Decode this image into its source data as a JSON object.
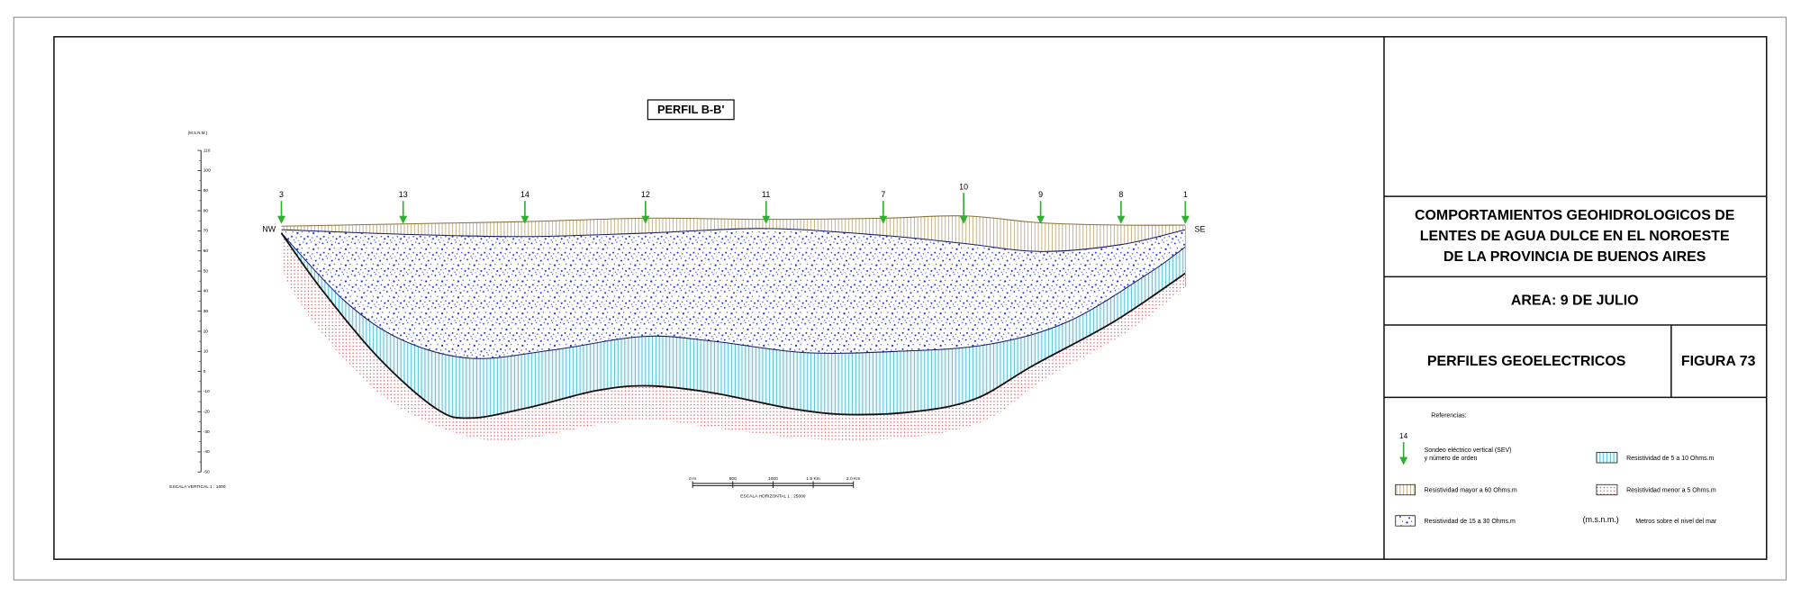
{
  "figure": {
    "title": "PERFIL B-B'",
    "left_label": "NW",
    "right_label": "SE",
    "sev_numbers": [
      3,
      13,
      14,
      12,
      11,
      7,
      10,
      9,
      8,
      1
    ]
  },
  "vertical_scale": {
    "unit": "(M.S.N.M.)",
    "ticks": [
      110,
      100,
      90,
      80,
      70,
      60,
      50,
      40,
      30,
      20,
      10,
      0,
      -10,
      -20,
      -30,
      -40,
      -50
    ],
    "caption": "ESCALA VERTICAL 1 : 1000"
  },
  "horizontal_scale": {
    "labels": [
      "0 m",
      "500",
      "1000",
      "1.5 Km",
      "2.0 Km"
    ],
    "caption": "ESCALA HORIZONTAL 1 : 25000"
  },
  "title_block": {
    "title_lines": [
      "COMPORTAMIENTOS GEOHIDROLOGICOS DE",
      "LENTES DE AGUA DULCE EN EL NOROESTE",
      "DE LA PROVINCIA DE BUENOS AIRES"
    ],
    "area": "AREA: 9 DE JULIO",
    "subject": "PERFILES GEOELECTRICOS",
    "figure": "FIGURA 73"
  },
  "references": {
    "heading": "Referencias:",
    "sev": {
      "symbol": 14,
      "lines": [
        "Sondeo eléctrico vertical (SEV)",
        "y número de orden"
      ]
    },
    "items": [
      {
        "label": "Resistividad mayor a 60 Ohms.m"
      },
      {
        "label": "Resistividad de 15 a 30 Ohms.m"
      },
      {
        "label": "Resistividad de 5 a 10 Ohms.m"
      },
      {
        "label": "Resistividad menor a 5 Ohms.m"
      }
    ],
    "msnm": {
      "symbol": "(m.s.n.m.)",
      "label": "Metros sobre el nivel del mar"
    }
  }
}
